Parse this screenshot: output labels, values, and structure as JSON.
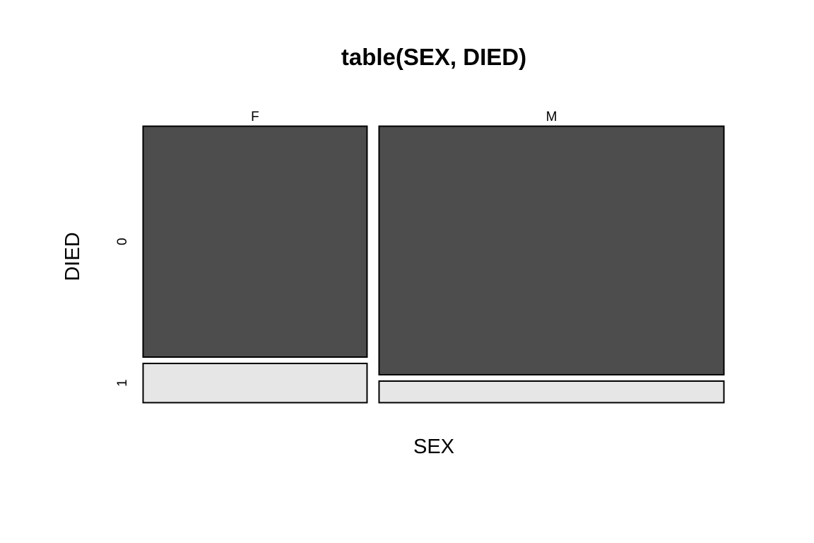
{
  "chart_data": {
    "type": "mosaic",
    "title": "table(SEX, DIED)",
    "xlabel": "SEX",
    "ylabel": "DIED",
    "x_categories": [
      "F",
      "M"
    ],
    "y_categories": [
      "0",
      "1"
    ],
    "column_proportions": [
      0.394,
      0.606
    ],
    "cells": [
      {
        "x": "F",
        "y": "0",
        "proportion_within_column": 0.853
      },
      {
        "x": "F",
        "y": "1",
        "proportion_within_column": 0.147
      },
      {
        "x": "M",
        "y": "0",
        "proportion_within_column": 0.918
      },
      {
        "x": "M",
        "y": "1",
        "proportion_within_column": 0.082
      }
    ],
    "colors": {
      "0": "#4d4d4d",
      "1": "#e6e6e6",
      "border": "#000000"
    },
    "grid": false,
    "legend": "none"
  }
}
